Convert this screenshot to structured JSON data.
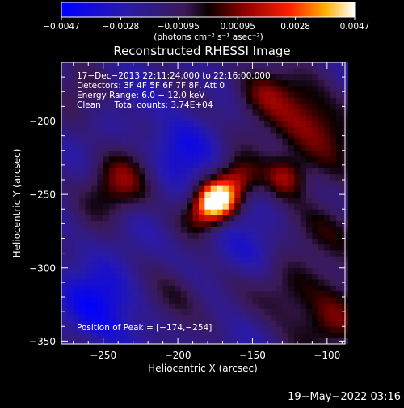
{
  "chart_data": {
    "type": "heatmap",
    "title": "Reconstructed RHESSI Image",
    "xlabel": "Heliocentric X (arcsec)",
    "ylabel": "Heliocentric Y (arcsec)",
    "xlim": [
      -278,
      -88
    ],
    "ylim": [
      -352,
      -160
    ],
    "xticks": [
      -250,
      -200,
      -150,
      -100
    ],
    "yticks": [
      -200,
      -250,
      -300,
      -350
    ],
    "xtick_labels": [
      "−250",
      "−200",
      "−150",
      "−100"
    ],
    "ytick_labels": [
      "−200",
      "−250",
      "−300",
      "−350"
    ],
    "colorbar": {
      "min": -0.0047,
      "max": 0.0047,
      "ticks": [
        -0.0047,
        -0.0028,
        -0.00095,
        0.00095,
        0.0028,
        0.0047
      ],
      "tick_labels": [
        "−0.0047",
        "−0.0028",
        "−0.00095",
        "0.00095",
        "0.0028",
        "0.0047"
      ],
      "unit_label": "(photons cm⁻² s⁻¹ asec⁻²)"
    },
    "annotations": [
      "17−Dec−2013 22:11:24.000 to 22:16:00.000",
      "Detectors: 3F 4F 5F 6F 7F 8F, Att 0",
      "Energy Range: 6.0 − 12.0 keV",
      "Clean     Total counts: 3.74E+04"
    ],
    "peak_label": "Position of Peak = [−174,−254]",
    "peak": {
      "x": -174,
      "y": -254,
      "value": 0.0047
    },
    "sources": [
      {
        "x": -174,
        "y": -254,
        "amp": 0.0075,
        "sigma": 9
      },
      {
        "x": -160,
        "y": -240,
        "amp": 0.003,
        "sigma": 10
      },
      {
        "x": -185,
        "y": -265,
        "amp": 0.002,
        "sigma": 9
      },
      {
        "x": -240,
        "y": -243,
        "amp": 0.003,
        "sigma": 16
      },
      {
        "x": -128,
        "y": -238,
        "amp": 0.0028,
        "sigma": 10
      },
      {
        "x": -110,
        "y": -205,
        "amp": 0.003,
        "sigma": 22
      },
      {
        "x": -145,
        "y": -180,
        "amp": 0.0025,
        "sigma": 14
      },
      {
        "x": -95,
        "y": -275,
        "amp": 0.0022,
        "sigma": 16
      },
      {
        "x": -200,
        "y": -320,
        "amp": 0.0018,
        "sigma": 15
      },
      {
        "x": -125,
        "y": -315,
        "amp": 0.0024,
        "sigma": 16
      },
      {
        "x": -95,
        "y": -340,
        "amp": 0.0026,
        "sigma": 16
      },
      {
        "x": -270,
        "y": -180,
        "amp": 0.001,
        "sigma": 15
      },
      {
        "x": -250,
        "y": -325,
        "amp": -0.0022,
        "sigma": 18
      },
      {
        "x": -200,
        "y": -220,
        "amp": -0.0016,
        "sigma": 16
      },
      {
        "x": -150,
        "y": -290,
        "amp": -0.001,
        "sigma": 14
      }
    ]
  },
  "footer_timestamp": "19−May−2022 03:16",
  "colors": {
    "background": "#000000",
    "foreground": "#ffffff"
  }
}
